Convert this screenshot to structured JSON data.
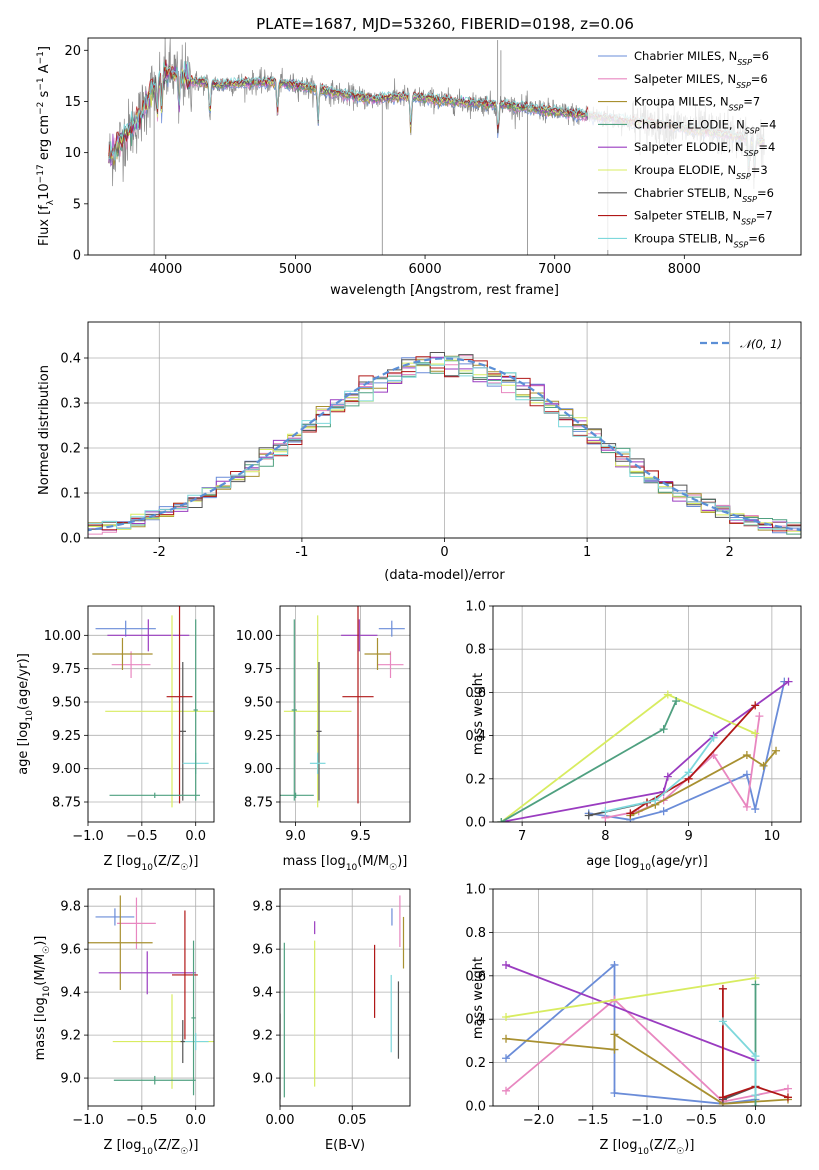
{
  "figure": {
    "title": "PLATE=1687, MJD=53260, FIBERID=0198, z=0.06"
  },
  "models": [
    {
      "name": "Chabrier MILES",
      "n": "6",
      "color": "#6a8cd8"
    },
    {
      "name": "Salpeter MILES",
      "n": "6",
      "color": "#e887c0"
    },
    {
      "name": "Kroupa MILES",
      "n": "7",
      "color": "#a89030"
    },
    {
      "name": "Chabrier ELODIE",
      "n": "4",
      "color": "#4fa080"
    },
    {
      "name": "Salpeter ELODIE",
      "n": "4",
      "color": "#9a3cc0"
    },
    {
      "name": "Kroupa ELODIE",
      "n": "3",
      "color": "#d8ec60"
    },
    {
      "name": "Chabrier STELIB",
      "n": "6",
      "color": "#555555"
    },
    {
      "name": "Salpeter STELIB",
      "n": "7",
      "color": "#b01818"
    },
    {
      "name": "Kroupa STELIB",
      "n": "6",
      "color": "#7ed8dc"
    }
  ],
  "chart_data": [
    {
      "id": "spectrum",
      "type": "line",
      "xlabel": "wavelength [Angstrom, rest frame]",
      "ylabel_prefix": "Flux [f",
      "ylabel_sub": "λ",
      "ylabel_main": "10",
      "ylabel_sup1": "−17",
      "ylabel_tail": " erg cm",
      "ylabel_sup2": "−2",
      "ylabel_s": " s",
      "ylabel_sup3": "−1",
      "ylabel_end": " A",
      "ylabel_sup4": "−1",
      "ylabel_close": "]",
      "xlim": [
        3400,
        8900
      ],
      "ylim": [
        0,
        21.2
      ],
      "xticks": [
        4000,
        5000,
        6000,
        7000,
        8000
      ],
      "yticks": [
        0,
        5,
        10,
        15,
        20
      ],
      "legend_sub": "SSP",
      "series_points": [
        [
          3560,
          9.5
        ],
        [
          3600,
          10.2
        ],
        [
          3700,
          11.8
        ],
        [
          3800,
          13.5
        ],
        [
          3880,
          15.8
        ],
        [
          3950,
          17.2
        ],
        [
          4000,
          17.8
        ],
        [
          4100,
          17.6
        ],
        [
          4200,
          17.0
        ],
        [
          4400,
          16.6
        ],
        [
          4600,
          16.8
        ],
        [
          4800,
          16.9
        ],
        [
          5000,
          16.6
        ],
        [
          5200,
          16.1
        ],
        [
          5400,
          15.6
        ],
        [
          5600,
          15.2
        ],
        [
          5800,
          15.5
        ],
        [
          6000,
          15.3
        ],
        [
          6200,
          15.0
        ],
        [
          6400,
          14.8
        ],
        [
          6600,
          14.7
        ],
        [
          6800,
          14.3
        ],
        [
          7000,
          14.0
        ],
        [
          7200,
          13.7
        ],
        [
          7400,
          13.4
        ],
        [
          7600,
          13.0
        ],
        [
          7800,
          12.8
        ],
        [
          8000,
          12.4
        ],
        [
          8200,
          12.0
        ],
        [
          8400,
          11.6
        ],
        [
          8600,
          11.0
        ]
      ],
      "absorption_lines": [
        3934,
        3969,
        4102,
        4340,
        4861,
        5175,
        5890,
        6563,
        8498,
        8542,
        8662
      ],
      "spikes": [
        [
          5670,
          0
        ],
        [
          6790,
          0
        ],
        [
          7410,
          0
        ],
        [
          3910,
          0
        ],
        [
          6560,
          21
        ],
        [
          6585,
          20
        ]
      ]
    },
    {
      "id": "residuals",
      "type": "histogram",
      "xlabel": "(data-model)/error",
      "ylabel": "Normed distribution",
      "xlim": [
        -2.5,
        2.5
      ],
      "ylim": [
        0,
        0.48
      ],
      "xticks": [
        -2,
        -1,
        0,
        1,
        2
      ],
      "yticks": [
        0.0,
        0.1,
        0.2,
        0.3,
        0.4
      ],
      "legend": "𝒩(0, 1)",
      "reference": {
        "name": "N(0,1)",
        "mean": 0,
        "sigma": 1,
        "color": "#5b8fd6"
      }
    },
    {
      "id": "age_vs_Z",
      "type": "errorbar",
      "xlabel": "Z [log10(Z/Z☉)]",
      "xlabel_a": "Z [log",
      "xlabel_sub": "10",
      "xlabel_b": "(Z/Z",
      "xlabel_sunsub": "☉",
      "xlabel_c": ")]",
      "ylabel_a": "age  [log",
      "ylabel_sub": "10",
      "ylabel_b": "(age/yr)]",
      "xlim": [
        -1.0,
        0.17
      ],
      "ylim": [
        8.6,
        10.22
      ],
      "xticks": [
        "−1.0",
        "−0.5",
        "0.0"
      ],
      "xtick_vals": [
        -1.0,
        -0.5,
        0.0
      ],
      "yticks": [
        "8.75",
        "9.00",
        "9.25",
        "9.50",
        "9.75",
        "10.00"
      ],
      "ytick_vals": [
        8.75,
        9.0,
        9.25,
        9.5,
        9.75,
        10.0
      ],
      "points": [
        {
          "model": 0,
          "x": -0.65,
          "xerr": 0.28,
          "y": 10.05,
          "yerr": 0.06
        },
        {
          "model": 1,
          "x": -0.6,
          "xerr": 0.18,
          "y": 9.78,
          "yerr": 0.1
        },
        {
          "model": 2,
          "x": -0.68,
          "xerr": 0.28,
          "y": 9.86,
          "yerr": 0.12
        },
        {
          "model": 4,
          "x": -0.44,
          "xerr": 0.38,
          "y": 10.0,
          "yerr": 0.12
        },
        {
          "model": 5,
          "x": -0.22,
          "xerr": 0.62,
          "y": 9.43,
          "yerr": 0.72
        },
        {
          "model": 6,
          "x": -0.12,
          "xerr": 0.03,
          "y": 9.28,
          "yerr": 0.52
        },
        {
          "model": 7,
          "x": -0.15,
          "xerr": 0.12,
          "y": 9.54,
          "yerr": 0.8
        },
        {
          "model": 8,
          "x": 0.0,
          "xerr": 0.12,
          "y": 9.04,
          "yerr": 0.08
        },
        {
          "model": 3,
          "x": -0.38,
          "xerr": 0.42,
          "y": 8.8,
          "yerr": 0.02
        },
        {
          "model": 3,
          "x": 0.0,
          "xerr": 0.02,
          "y": 9.44,
          "yerr": 0.68
        }
      ]
    },
    {
      "id": "age_vs_mass",
      "type": "errorbar",
      "xlabel_a": "mass [log",
      "xlabel_sub": "10",
      "xlabel_b": "(M/M",
      "xlabel_sunsub": "☉",
      "xlabel_c": ")]",
      "xlim": [
        8.88,
        9.88
      ],
      "ylim": [
        8.6,
        10.22
      ],
      "xticks": [
        "9.0",
        "9.5"
      ],
      "xtick_vals": [
        9.0,
        9.5
      ],
      "yticks": [
        "8.75",
        "9.00",
        "9.25",
        "9.50",
        "9.75",
        "10.00"
      ],
      "ytick_vals": [
        8.75,
        9.0,
        9.25,
        9.5,
        9.75,
        10.0
      ],
      "points": [
        {
          "model": 0,
          "x": 9.74,
          "xerr": 0.1,
          "y": 10.05,
          "yerr": 0.06
        },
        {
          "model": 1,
          "x": 9.73,
          "xerr": 0.1,
          "y": 9.78,
          "yerr": 0.1
        },
        {
          "model": 2,
          "x": 9.63,
          "xerr": 0.1,
          "y": 9.86,
          "yerr": 0.12
        },
        {
          "model": 4,
          "x": 9.49,
          "xerr": 0.14,
          "y": 10.0,
          "yerr": 0.12
        },
        {
          "model": 5,
          "x": 9.17,
          "xerr": 0.26,
          "y": 9.43,
          "yerr": 0.72
        },
        {
          "model": 6,
          "x": 9.18,
          "xerr": 0.02,
          "y": 9.28,
          "yerr": 0.52
        },
        {
          "model": 7,
          "x": 9.48,
          "xerr": 0.12,
          "y": 9.54,
          "yerr": 0.8
        },
        {
          "model": 8,
          "x": 9.17,
          "xerr": 0.06,
          "y": 9.04,
          "yerr": 0.08
        },
        {
          "model": 3,
          "x": 8.99,
          "xerr": 0.02,
          "y": 9.44,
          "yerr": 0.68
        },
        {
          "model": 3,
          "x": 9.0,
          "xerr": 0.14,
          "y": 8.8,
          "yerr": 0.02
        }
      ]
    },
    {
      "id": "weight_vs_age",
      "type": "line",
      "xlabel_a": "age  [log",
      "xlabel_sub": "10",
      "xlabel_b": "(age/yr)]",
      "ylabel": "mass weight",
      "xlim": [
        6.65,
        10.35
      ],
      "ylim": [
        0,
        1.0
      ],
      "xticks": [
        "7",
        "8",
        "9",
        "10"
      ],
      "xtick_vals": [
        7,
        8,
        9,
        10
      ],
      "yticks": [
        "0.0",
        "0.2",
        "0.4",
        "0.6",
        "0.8",
        "1.0"
      ],
      "ytick_vals": [
        0,
        0.2,
        0.4,
        0.6,
        0.8,
        1.0
      ],
      "series": [
        {
          "model": 0,
          "points": [
            [
              7.8,
              0.04
            ],
            [
              8.3,
              0.01
            ],
            [
              8.7,
              0.05
            ],
            [
              9.7,
              0.22
            ],
            [
              9.8,
              0.06
            ],
            [
              10.15,
              0.65
            ]
          ]
        },
        {
          "model": 1,
          "points": [
            [
              8.0,
              0.02
            ],
            [
              8.4,
              0.05
            ],
            [
              8.7,
              0.1
            ],
            [
              9.3,
              0.31
            ],
            [
              9.7,
              0.07
            ],
            [
              9.85,
              0.49
            ]
          ]
        },
        {
          "model": 2,
          "points": [
            [
              8.3,
              0.03
            ],
            [
              8.6,
              0.08
            ],
            [
              9.7,
              0.31
            ],
            [
              9.9,
              0.26
            ],
            [
              10.05,
              0.33
            ]
          ]
        },
        {
          "model": 4,
          "points": [
            [
              6.75,
              0.0
            ],
            [
              8.7,
              0.14
            ],
            [
              8.75,
              0.21
            ],
            [
              9.3,
              0.4
            ],
            [
              10.2,
              0.65
            ]
          ]
        },
        {
          "model": 5,
          "points": [
            [
              6.75,
              0.0
            ],
            [
              8.75,
              0.59
            ],
            [
              9.8,
              0.41
            ]
          ]
        },
        {
          "model": 3,
          "points": [
            [
              6.75,
              0.0
            ],
            [
              8.7,
              0.43
            ],
            [
              8.85,
              0.56
            ]
          ]
        },
        {
          "model": 6,
          "points": [
            [
              7.8,
              0.03
            ],
            [
              8.5,
              0.09
            ]
          ]
        },
        {
          "model": 7,
          "points": [
            [
              8.3,
              0.04
            ],
            [
              8.5,
              0.09
            ],
            [
              9.0,
              0.2
            ],
            [
              9.8,
              0.54
            ]
          ]
        },
        {
          "model": 8,
          "points": [
            [
              8.0,
              0.05
            ],
            [
              8.6,
              0.1
            ],
            [
              9.0,
              0.23
            ],
            [
              9.3,
              0.39
            ]
          ]
        }
      ]
    },
    {
      "id": "mass_vs_Z",
      "type": "errorbar",
      "xlabel_a": "Z [log",
      "xlabel_sub": "10",
      "xlabel_b": "(Z/Z",
      "xlabel_sunsub": "☉",
      "xlabel_c": ")]",
      "ylabel_a": "mass [log",
      "ylabel_sub": "10",
      "ylabel_b": "(M/M",
      "ylabel_sunsub": "☉",
      "ylabel_c": ")]",
      "xlim": [
        -1.0,
        0.17
      ],
      "ylim": [
        8.87,
        9.88
      ],
      "xticks": [
        "−1.0",
        "−0.5",
        "0.0"
      ],
      "xtick_vals": [
        -1.0,
        -0.5,
        0.0
      ],
      "yticks": [
        "9.0",
        "9.2",
        "9.4",
        "9.6",
        "9.8"
      ],
      "ytick_vals": [
        9.0,
        9.2,
        9.4,
        9.6,
        9.8
      ],
      "points": [
        {
          "model": 0,
          "x": -0.75,
          "xerr": 0.18,
          "y": 9.75,
          "yerr": 0.04
        },
        {
          "model": 1,
          "x": -0.55,
          "xerr": 0.18,
          "y": 9.72,
          "yerr": 0.12
        },
        {
          "model": 2,
          "x": -0.7,
          "xerr": 0.3,
          "y": 9.63,
          "yerr": 0.22
        },
        {
          "model": 4,
          "x": -0.45,
          "xerr": 0.45,
          "y": 9.49,
          "yerr": 0.1
        },
        {
          "model": 7,
          "x": -0.1,
          "xerr": 0.12,
          "y": 9.48,
          "yerr": 0.3
        },
        {
          "model": 5,
          "x": -0.22,
          "xerr": 0.55,
          "y": 9.17,
          "yerr": 0.22
        },
        {
          "model": 8,
          "x": 0.0,
          "xerr": 0.12,
          "y": 9.17,
          "yerr": 0.04
        },
        {
          "model": 6,
          "x": -0.12,
          "xerr": 0.02,
          "y": 9.17,
          "yerr": 0.1
        },
        {
          "model": 3,
          "x": -0.38,
          "xerr": 0.38,
          "y": 8.99,
          "yerr": 0.02
        },
        {
          "model": 3,
          "x": -0.02,
          "xerr": 0.02,
          "y": 9.28,
          "yerr": 0.36
        }
      ]
    },
    {
      "id": "mass_vs_EBV",
      "type": "errorbar",
      "xlabel": "E(B-V)",
      "xlim": [
        0.0,
        0.09
      ],
      "ylim": [
        8.87,
        9.88
      ],
      "xticks": [
        "0.00",
        "0.05"
      ],
      "xtick_vals": [
        0.0,
        0.05
      ],
      "yticks": [
        "9.0",
        "9.2",
        "9.4",
        "9.6",
        "9.8"
      ],
      "ytick_vals": [
        9.0,
        9.2,
        9.4,
        9.6,
        9.8
      ],
      "points": [
        {
          "model": 0,
          "x": 0.0775,
          "xerr": 0,
          "y": 9.75,
          "yerr": 0.04
        },
        {
          "model": 1,
          "x": 0.083,
          "xerr": 0,
          "y": 9.73,
          "yerr": 0.12
        },
        {
          "model": 2,
          "x": 0.0855,
          "xerr": 0,
          "y": 9.63,
          "yerr": 0.12
        },
        {
          "model": 4,
          "x": 0.024,
          "xerr": 0,
          "y": 9.7,
          "yerr": 0.03
        },
        {
          "model": 5,
          "x": 0.024,
          "xerr": 0,
          "y": 9.3,
          "yerr": 0.34
        },
        {
          "model": 7,
          "x": 0.0655,
          "xerr": 0,
          "y": 9.45,
          "yerr": 0.17
        },
        {
          "model": 8,
          "x": 0.077,
          "xerr": 0,
          "y": 9.3,
          "yerr": 0.18
        },
        {
          "model": 6,
          "x": 0.082,
          "xerr": 0,
          "y": 9.27,
          "yerr": 0.18
        },
        {
          "model": 3,
          "x": 0.003,
          "xerr": 0,
          "y": 9.27,
          "yerr": 0.36
        },
        {
          "model": 6,
          "x": 0.0,
          "xerr": 0,
          "y": 9.1,
          "yerr": 0.2
        }
      ]
    },
    {
      "id": "weight_vs_Z",
      "type": "line",
      "xlabel_a": "Z [log",
      "xlabel_sub": "10",
      "xlabel_b": "(Z/Z",
      "xlabel_sunsub": "☉",
      "xlabel_c": ")]",
      "ylabel": "mass weight",
      "xlim": [
        -2.42,
        0.42
      ],
      "ylim": [
        0,
        1.0
      ],
      "xticks": [
        "−2.0",
        "−1.5",
        "−1.0",
        "−0.5",
        "0.0"
      ],
      "xtick_vals": [
        -2.0,
        -1.5,
        -1.0,
        -0.5,
        0.0
      ],
      "yticks": [
        "0.0",
        "0.2",
        "0.4",
        "0.6",
        "0.8",
        "1.0"
      ],
      "ytick_vals": [
        0,
        0.2,
        0.4,
        0.6,
        0.8,
        1.0
      ],
      "series": [
        {
          "model": 0,
          "points": [
            [
              -2.3,
              0.22
            ],
            [
              -1.3,
              0.65
            ],
            [
              -1.3,
              0.06
            ],
            [
              -0.3,
              0.01
            ],
            [
              0.0,
              0.03
            ]
          ]
        },
        {
          "model": 1,
          "points": [
            [
              -2.3,
              0.07
            ],
            [
              -1.3,
              0.49
            ],
            [
              -0.3,
              0.02
            ],
            [
              0.0,
              0.05
            ],
            [
              0.3,
              0.08
            ]
          ]
        },
        {
          "model": 2,
          "points": [
            [
              -2.3,
              0.31
            ],
            [
              -1.3,
              0.26
            ],
            [
              -1.3,
              0.33
            ],
            [
              -0.3,
              0.01
            ],
            [
              0.3,
              0.03
            ]
          ]
        },
        {
          "model": 4,
          "points": [
            [
              -2.3,
              0.65
            ],
            [
              0.0,
              0.21
            ]
          ]
        },
        {
          "model": 5,
          "points": [
            [
              -2.3,
              0.41
            ],
            [
              0.0,
              0.59
            ]
          ]
        },
        {
          "model": 3,
          "points": [
            [
              0.0,
              0.0
            ],
            [
              0.0,
              0.56
            ]
          ]
        },
        {
          "model": 6,
          "points": [
            [
              -0.3,
              0.03
            ],
            [
              0.0,
              0.09
            ]
          ]
        },
        {
          "model": 7,
          "points": [
            [
              -0.3,
              0.54
            ],
            [
              -0.3,
              0.04
            ],
            [
              0.0,
              0.09
            ],
            [
              0.3,
              0.04
            ]
          ]
        },
        {
          "model": 8,
          "points": [
            [
              -0.3,
              0.39
            ],
            [
              0.0,
              0.23
            ],
            [
              0.0,
              0.05
            ]
          ]
        }
      ]
    }
  ]
}
